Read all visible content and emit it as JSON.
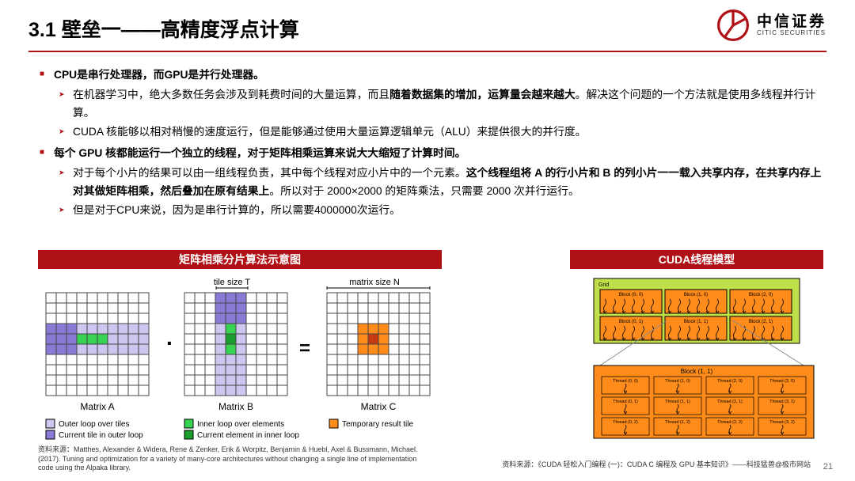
{
  "header": {
    "title": "3.1 壁垒一——高精度浮点计算",
    "logo_cn": "中信证券",
    "logo_en": "CITIC SECURITIES",
    "logo_color": "#b01116",
    "rule_color": "#b01116"
  },
  "bullets": {
    "b1": "CPU是串行处理器，而GPU是并行处理器。",
    "b1a_pre": "在机器学习中，绝大多数任务会涉及到耗费时间的大量运算，而且",
    "b1a_bold": "随着数据集的增加，运算量会越来越大",
    "b1a_post": "。解决这个问题的一个方法就是使用多线程并行计算。",
    "b1b": "CUDA 核能够以相对稍慢的速度运行，但是能够通过使用大量运算逻辑单元（ALU）来提供很大的并行度。",
    "b2": "每个 GPU 核都能运行一个独立的线程，对于矩阵相乘运算来说大大缩短了计算时间。",
    "b2a_pre": "对于每个小片的结果可以由一组线程负责，其中每个线程对应小片中的一个元素。",
    "b2a_bold": "这个线程组将 A 的行小片和 B 的列小片一一载入共享内存，在共享内存上对其做矩阵相乘，然后叠加在原有结果上",
    "b2a_post": "。所以对于 2000×2000 的矩阵乘法，只需要 2000 次并行运行。",
    "b2b": "但是对于CPU来说，因为是串行计算的，所以需要4000000次运行。"
  },
  "figs": {
    "left_title": "矩阵相乘分片算法示意图",
    "right_title": "CUDA线程模型",
    "tile_size_label": "tile size T",
    "matrix_size_label": "matrix size N",
    "mA": "Matrix A",
    "mB": "Matrix B",
    "mC": "Matrix C",
    "legend1": "Outer loop over tiles",
    "legend2": "Current tile in outer loop",
    "legend3": "Inner loop over elements",
    "legend4": "Current element in inner loop",
    "legend5": "Temporary result tile",
    "grid_label": "Grid",
    "blocks": [
      "Block (0, 0)",
      "Block (1, 0)",
      "Block (2, 0)",
      "Block (0, 1)",
      "Block (1, 1)",
      "Block (2, 1)"
    ],
    "block_detail": "Block (1, 1)",
    "threads": [
      "Thread (0, 0)",
      "Thread (1, 0)",
      "Thread (2, 0)",
      "Thread (3, 0)",
      "Thread (0, 1)",
      "Thread (1, 1)",
      "Thread (2, 1)",
      "Thread (3, 1)",
      "Thread (0, 2)",
      "Thread (1, 2)",
      "Thread (2, 2)",
      "Thread (3, 2)"
    ],
    "colors": {
      "grid_bg": "#bfe04a",
      "block_bg": "#ff8c1a",
      "block_border": "#000",
      "tile_lavender": "#cdc6ef",
      "tile_purple": "#8a7ad6",
      "tile_green": "#39d353",
      "tile_orange": "#ff8c1a",
      "grid_line": "#444"
    }
  },
  "sources": {
    "left": "资料来源：Matthes, Alexander & Widera, Rene & Zenker, Erik & Worpitz, Benjamin & Huebl, Axel & Bussmann, Michael. (2017). Tuning and optimization for a variety of many-core architectures without changing a single line of implementation code using the Alpaka library.",
    "right": "资料来源：《CUDA 轻松入门编程 (一)：CUDA C 编程及 GPU 基本知识》——科技猛兽@极市网站"
  },
  "page": "21"
}
